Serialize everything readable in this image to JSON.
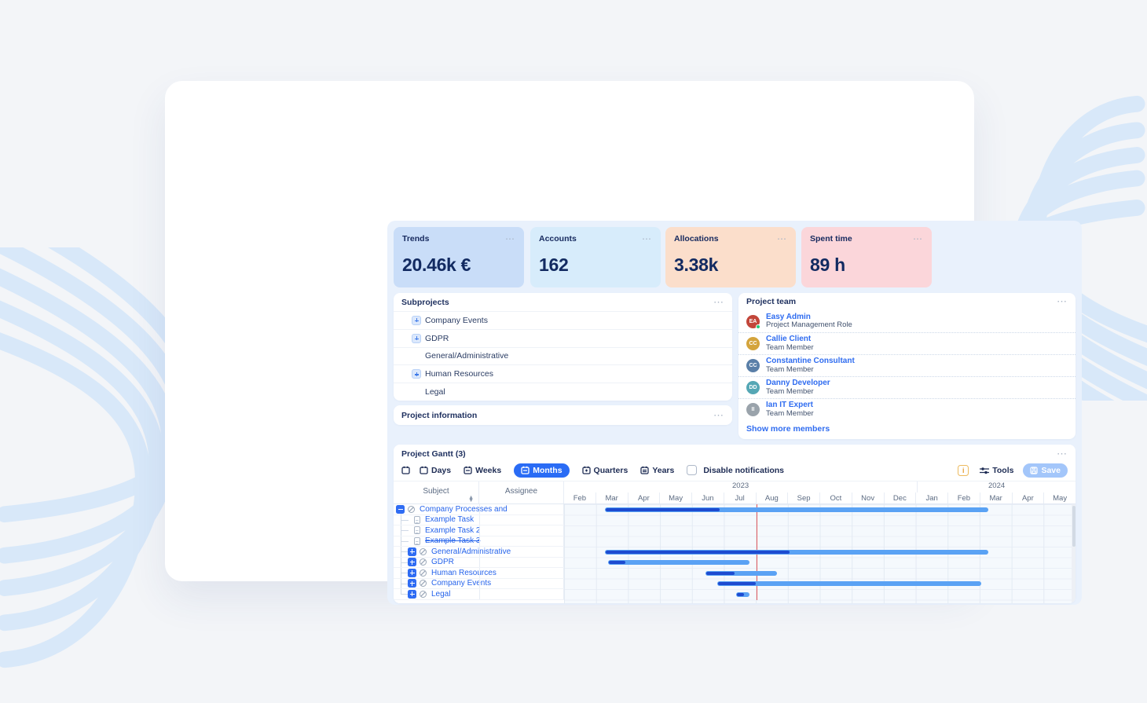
{
  "stats": [
    {
      "label": "Trends",
      "value": "20.46k €",
      "bg": "#c9ddf8"
    },
    {
      "label": "Accounts",
      "value": "162",
      "bg": "#d7ecfb"
    },
    {
      "label": "Allocations",
      "value": "3.38k",
      "bg": "#fbdecb"
    },
    {
      "label": "Spent time",
      "value": "89 h",
      "bg": "#fbd6da"
    }
  ],
  "subprojects": {
    "title": "Subprojects",
    "items": [
      {
        "label": "Company Events",
        "expandable": true
      },
      {
        "label": "GDPR",
        "expandable": true
      },
      {
        "label": "General/Administrative",
        "expandable": false
      },
      {
        "label": "Human Resources",
        "expandable": true
      },
      {
        "label": "Legal",
        "expandable": false
      }
    ]
  },
  "project_information": {
    "title": "Project information"
  },
  "team": {
    "title": "Project team",
    "show_more": "Show more members",
    "members": [
      {
        "name": "Easy Admin",
        "role": "Project Management Role",
        "initials": "EA",
        "color": "#c2463a",
        "online": true
      },
      {
        "name": "Callie Client",
        "role": "Team Member",
        "initials": "CC",
        "color": "#d4a43c",
        "online": false
      },
      {
        "name": "Constantine Consultant",
        "role": "Team Member",
        "initials": "CC",
        "color": "#5a7fa8",
        "online": false
      },
      {
        "name": "Danny Developer",
        "role": "Team Member",
        "initials": "DD",
        "color": "#55a7b5",
        "online": false
      },
      {
        "name": "Ian IT Expert",
        "role": "Team Member",
        "initials": "II",
        "color": "#9aa3ab",
        "online": false
      }
    ]
  },
  "gantt": {
    "title": "Project Gantt (3)",
    "toolbar": {
      "days": "Days",
      "weeks": "Weeks",
      "months": "Months",
      "quarters": "Quarters",
      "years": "Years",
      "active_view": "Months",
      "checkbox_label": "Disable notifications",
      "checkbox_checked": false,
      "tools": "Tools",
      "save": "Save"
    },
    "columns": {
      "subject": "Subject",
      "assignee": "Assignee"
    },
    "timeline": {
      "years": [
        {
          "label": "2023",
          "width_pct": 69
        },
        {
          "label": "2024",
          "width_pct": 31
        }
      ],
      "months": [
        "Feb",
        "Mar",
        "Apr",
        "May",
        "Jun",
        "Jul",
        "Aug",
        "Sep",
        "Oct",
        "Nov",
        "Dec",
        "Jan",
        "Feb",
        "Mar",
        "Apr",
        "May"
      ],
      "today_pct": 37.6
    },
    "bar_colors": {
      "track": "#5aa2f4",
      "progress": "#1d4bd0",
      "today_line": "#e25a5e"
    },
    "tasks": [
      {
        "name": "Company Processes and",
        "type": "project",
        "expanded": true,
        "strike": false,
        "bar": {
          "left_pct": 8.0,
          "width_pct": 74.9,
          "progress_pct": 29.8
        }
      },
      {
        "name": "Example Task",
        "type": "task",
        "strike": false,
        "bar": null
      },
      {
        "name": "Example Task 2",
        "type": "task",
        "strike": false,
        "bar": null
      },
      {
        "name": "Example Task 3",
        "type": "task",
        "strike": true,
        "bar": null
      },
      {
        "name": "General/Administrative",
        "type": "project",
        "expanded": false,
        "strike": false,
        "bar": {
          "left_pct": 8.0,
          "width_pct": 74.9,
          "progress_pct": 47.9
        }
      },
      {
        "name": "GDPR",
        "type": "project",
        "expanded": false,
        "strike": false,
        "bar": {
          "left_pct": 8.6,
          "width_pct": 27.6,
          "progress_pct": 11.7
        }
      },
      {
        "name": "Human Resources",
        "type": "project",
        "expanded": false,
        "strike": false,
        "bar": {
          "left_pct": 27.6,
          "width_pct": 14.0,
          "progress_pct": 39.6
        }
      },
      {
        "name": "Company Events",
        "type": "project",
        "expanded": false,
        "strike": false,
        "bar": {
          "left_pct": 30.0,
          "width_pct": 51.5,
          "progress_pct": 14.1
        }
      },
      {
        "name": "Legal",
        "type": "project",
        "expanded": false,
        "strike": false,
        "bar": {
          "left_pct": 33.7,
          "width_pct": 2.5,
          "progress_pct": 50
        }
      }
    ]
  }
}
